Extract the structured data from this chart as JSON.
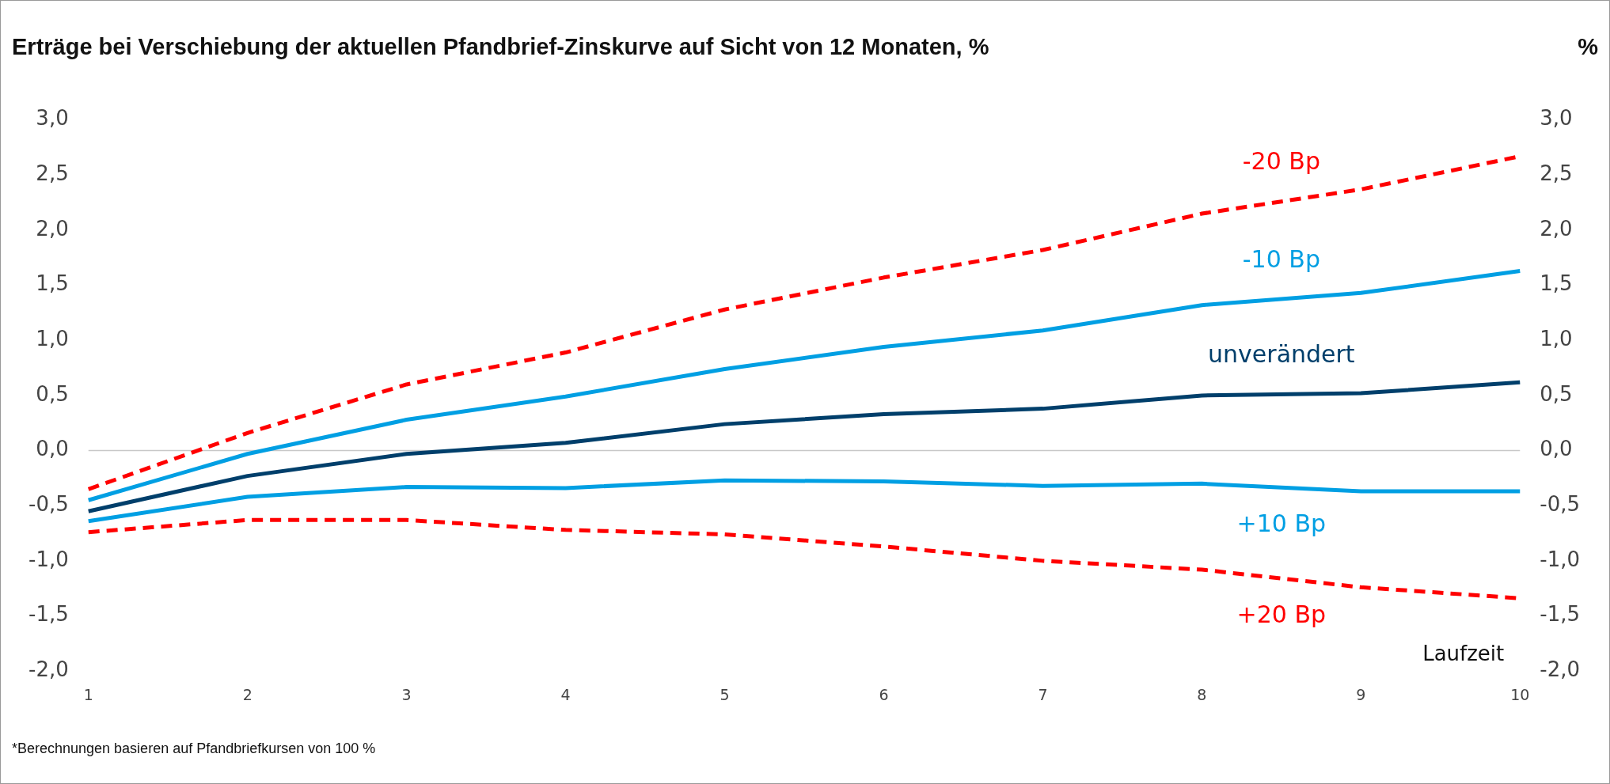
{
  "chart_data": {
    "type": "line",
    "title": "Erträge bei Verschiebung der aktuellen Pfandbrief-Zinskurve auf Sicht von 12 Monaten, %",
    "xlabel": "Laufzeit",
    "y2label": "%",
    "categories": [
      "1",
      "2",
      "3",
      "4",
      "5",
      "6",
      "7",
      "8",
      "9",
      "10"
    ],
    "series": [
      {
        "name": "-20 Bp",
        "color": "#ff0000",
        "line_style": "dashed",
        "values": [
          -0.35,
          0.16,
          0.6,
          0.89,
          1.28,
          1.57,
          1.82,
          2.15,
          2.37,
          2.67
        ]
      },
      {
        "name": "-10 Bp",
        "color": "#009fe3",
        "line_style": "solid",
        "values": [
          -0.45,
          -0.03,
          0.28,
          0.49,
          0.74,
          0.94,
          1.09,
          1.32,
          1.43,
          1.63
        ]
      },
      {
        "name": "unverändert",
        "color": "#003f6b",
        "line_style": "solid",
        "values": [
          -0.55,
          -0.23,
          -0.03,
          0.07,
          0.24,
          0.33,
          0.38,
          0.5,
          0.52,
          0.62
        ]
      },
      {
        "name": "+10 Bp",
        "color": "#009fe3",
        "line_style": "solid",
        "values": [
          -0.64,
          -0.42,
          -0.33,
          -0.34,
          -0.27,
          -0.28,
          -0.32,
          -0.3,
          -0.37,
          -0.37
        ]
      },
      {
        "name": "+20 Bp",
        "color": "#ff0000",
        "line_style": "dashed",
        "values": [
          -0.74,
          -0.63,
          -0.63,
          -0.72,
          -0.76,
          -0.87,
          -1.0,
          -1.08,
          -1.24,
          -1.34
        ]
      }
    ],
    "ylim": [
      -2,
      3
    ],
    "yticks": [
      {
        "value": -2,
        "label": "-2,0"
      },
      {
        "value": -1.5,
        "label": "-1,5"
      },
      {
        "value": -1,
        "label": "-1,0"
      },
      {
        "value": -0.5,
        "label": "-0,5"
      },
      {
        "value": 0,
        "label": "0,0"
      },
      {
        "value": 0.5,
        "label": "0,5"
      },
      {
        "value": 1,
        "label": "1,0"
      },
      {
        "value": 1.5,
        "label": "1,5"
      },
      {
        "value": 2,
        "label": "2,0"
      },
      {
        "value": 2.5,
        "label": "2,5"
      },
      {
        "value": 3,
        "label": "3,0"
      }
    ],
    "y2lim": [
      -2,
      3
    ],
    "y2ticks": [
      {
        "value": -2,
        "label": "-2,0"
      },
      {
        "value": -1.5,
        "label": "-1,5"
      },
      {
        "value": -1,
        "label": "-1,0"
      },
      {
        "value": -0.5,
        "label": "-0,5"
      },
      {
        "value": 0,
        "label": "0,0"
      },
      {
        "value": 0.5,
        "label": "0,5"
      },
      {
        "value": 1,
        "label": "1,0"
      },
      {
        "value": 1.5,
        "label": "1,5"
      },
      {
        "value": 2,
        "label": "2,0"
      },
      {
        "value": 2.5,
        "label": "2,5"
      },
      {
        "value": 3,
        "label": "3,0"
      }
    ],
    "ref_lines": [
      {
        "axis": "y",
        "value": 0,
        "color": "#c8c8c8"
      }
    ],
    "grid": false,
    "legend": false,
    "marker": "none",
    "annotations": [
      "*Berechnungen basieren auf Pfandbriefkursen von 100 %"
    ]
  }
}
